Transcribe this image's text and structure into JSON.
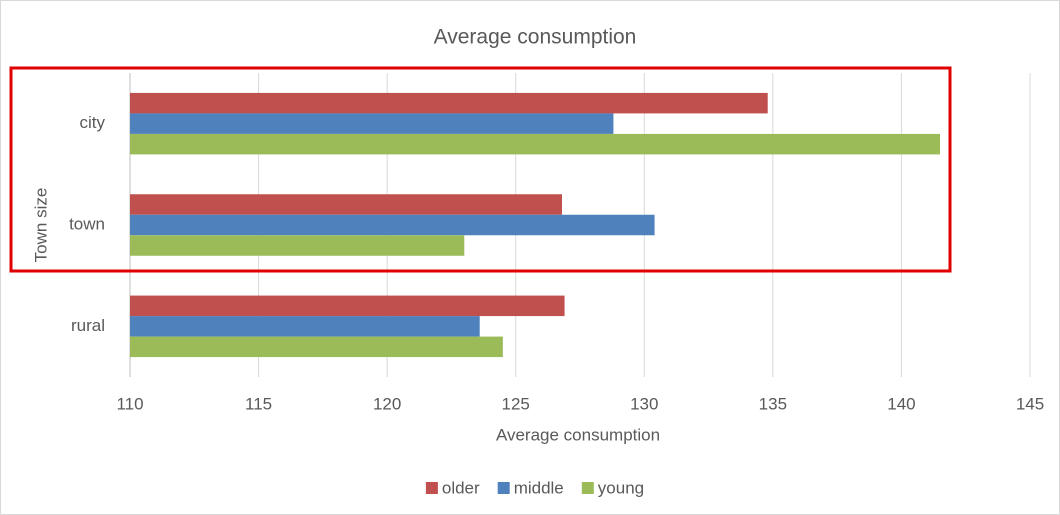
{
  "chart_data": {
    "type": "bar",
    "orientation": "horizontal",
    "title": "Average consumption",
    "x_label": "Average consumption",
    "y_label": "Town size",
    "categories": [
      "city",
      "town",
      "rural"
    ],
    "series": [
      {
        "name": "older",
        "color": "#c0504d",
        "values": [
          134.8,
          126.8,
          126.9
        ]
      },
      {
        "name": "middle",
        "color": "#4f81bd",
        "values": [
          128.8,
          130.4,
          123.6
        ]
      },
      {
        "name": "young",
        "color": "#9bbb59",
        "values": [
          141.5,
          123.0,
          124.5
        ]
      }
    ],
    "xlim": [
      110,
      145
    ],
    "xticks": [
      110,
      115,
      120,
      125,
      130,
      135,
      140,
      145
    ],
    "grid": true,
    "legend": "bottom"
  }
}
